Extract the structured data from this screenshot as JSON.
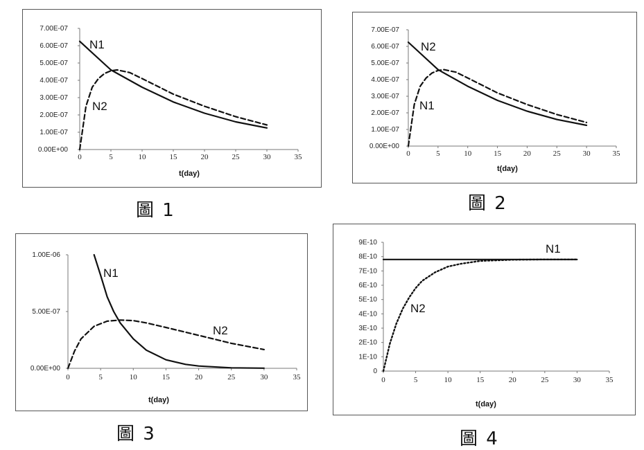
{
  "captions": [
    "圖 1",
    "圖 2",
    "圖 3",
    "圖 4"
  ],
  "chart_data": [
    {
      "type": "line",
      "xlabel": "t(day)",
      "x_ticks": [
        "0",
        "5",
        "10",
        "15",
        "20",
        "25",
        "30",
        "35"
      ],
      "y_ticks": [
        "0.00E+00",
        "1.00E-07",
        "2.00E-07",
        "3.00E-07",
        "4.00E-07",
        "5.00E-07",
        "6.00E-07",
        "7.00E-07"
      ],
      "xlim": [
        0,
        35
      ],
      "ylim": [
        0,
        7e-07
      ],
      "series": [
        {
          "name": "N1",
          "style": "solid",
          "x": [
            0,
            5,
            10,
            15,
            20,
            25,
            30
          ],
          "values": [
            6.25e-07,
            4.6e-07,
            3.6e-07,
            2.75e-07,
            2.1e-07,
            1.6e-07,
            1.25e-07
          ]
        },
        {
          "name": "N2",
          "style": "dashed",
          "x": [
            0,
            1,
            2,
            3,
            4,
            5,
            6,
            8,
            10,
            15,
            20,
            25,
            30
          ],
          "values": [
            0,
            2.5e-07,
            3.6e-07,
            4.1e-07,
            4.4e-07,
            4.55e-07,
            4.6e-07,
            4.45e-07,
            4.1e-07,
            3.2e-07,
            2.5e-07,
            1.9e-07,
            1.42e-07
          ]
        }
      ]
    },
    {
      "type": "line",
      "xlabel": "t(day)",
      "x_ticks": [
        "0",
        "5",
        "10",
        "15",
        "20",
        "25",
        "30",
        "35"
      ],
      "y_ticks": [
        "0.00E+00",
        "1.00E-07",
        "2.00E-07",
        "3.00E-07",
        "4.00E-07",
        "5.00E-07",
        "6.00E-07",
        "7.00E-07"
      ],
      "xlim": [
        0,
        35
      ],
      "ylim": [
        0,
        7e-07
      ],
      "series": [
        {
          "name": "N2",
          "style": "solid",
          "x": [
            0,
            5,
            10,
            15,
            20,
            25,
            30
          ],
          "values": [
            6.25e-07,
            4.6e-07,
            3.6e-07,
            2.75e-07,
            2.1e-07,
            1.6e-07,
            1.25e-07
          ]
        },
        {
          "name": "N1",
          "style": "dashed",
          "x": [
            0,
            1,
            2,
            3,
            4,
            5,
            6,
            8,
            10,
            15,
            20,
            25,
            30
          ],
          "values": [
            0,
            2.5e-07,
            3.6e-07,
            4.1e-07,
            4.4e-07,
            4.55e-07,
            4.6e-07,
            4.45e-07,
            4.1e-07,
            3.2e-07,
            2.5e-07,
            1.9e-07,
            1.42e-07
          ]
        }
      ]
    },
    {
      "type": "line",
      "xlabel": "t(day)",
      "x_ticks": [
        "0",
        "5",
        "10",
        "15",
        "20",
        "25",
        "30",
        "35"
      ],
      "y_ticks": [
        "0.00E+00",
        "5.00E-07",
        "1.00E-06"
      ],
      "xlim": [
        0,
        35
      ],
      "ylim": [
        0,
        1e-06
      ],
      "series": [
        {
          "name": "N1",
          "style": "solid",
          "x": [
            4,
            5,
            6,
            7,
            8,
            10,
            12,
            15,
            18,
            20,
            25,
            30
          ],
          "values": [
            1e-06,
            8.2e-07,
            6.3e-07,
            5e-07,
            4e-07,
            2.6e-07,
            1.6e-07,
            7.5e-08,
            3.5e-08,
            2e-08,
            4e-09,
            1e-09
          ]
        },
        {
          "name": "N2",
          "style": "dashed",
          "x": [
            0,
            1,
            2,
            4,
            6,
            8,
            10,
            12,
            15,
            20,
            25,
            30
          ],
          "values": [
            0,
            1.5e-07,
            2.6e-07,
            3.7e-07,
            4.15e-07,
            4.25e-07,
            4.2e-07,
            4e-07,
            3.6e-07,
            2.9e-07,
            2.2e-07,
            1.65e-07
          ]
        }
      ]
    },
    {
      "type": "line",
      "xlabel": "t(day)",
      "x_ticks": [
        "0",
        "5",
        "10",
        "15",
        "20",
        "25",
        "30",
        "35"
      ],
      "y_ticks": [
        "0",
        "1E-10",
        "2E-10",
        "3E-10",
        "4E-10",
        "5E-10",
        "6E-10",
        "7E-10",
        "8E-10",
        "9E-10"
      ],
      "xlim": [
        0,
        35
      ],
      "ylim": [
        0,
        9e-10
      ],
      "series": [
        {
          "name": "N1",
          "style": "solid",
          "x": [
            0,
            30
          ],
          "values": [
            7.8e-10,
            7.8e-10
          ]
        },
        {
          "name": "N2",
          "style": "dotted",
          "x": [
            0,
            1,
            2,
            3,
            4,
            5,
            6,
            8,
            10,
            12,
            15,
            20,
            25,
            30
          ],
          "values": [
            0,
            1.9e-10,
            3.3e-10,
            4.35e-10,
            5.15e-10,
            5.8e-10,
            6.3e-10,
            6.9e-10,
            7.3e-10,
            7.5e-10,
            7.7e-10,
            7.78e-10,
            7.8e-10,
            7.8e-10
          ]
        }
      ]
    }
  ]
}
